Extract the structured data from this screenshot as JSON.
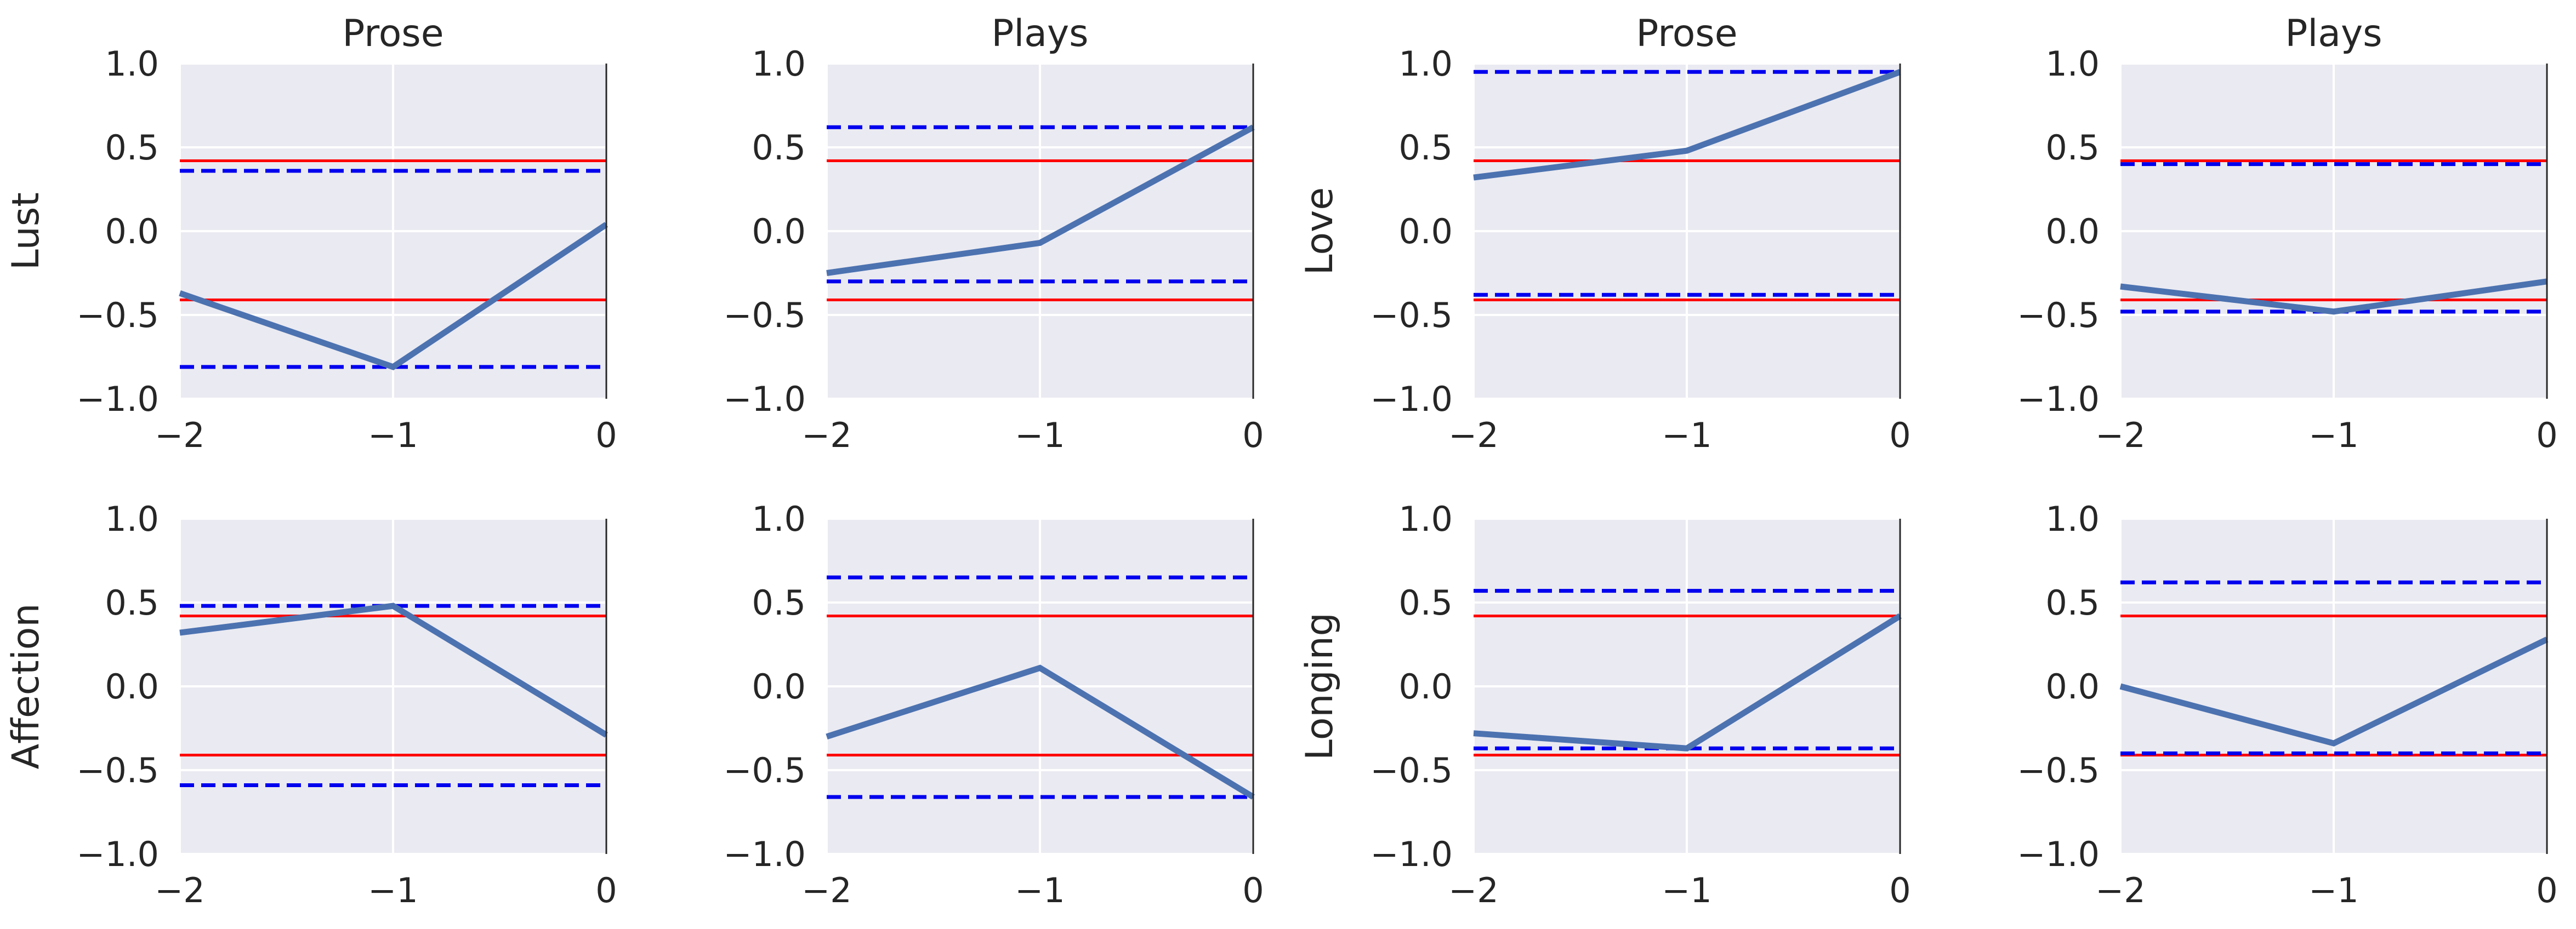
{
  "colors": {
    "panel_bg": "#eaeaf2",
    "grid": "#ffffff",
    "series": "#4c72b0",
    "threshold_solid": "#ff0000",
    "threshold_dashed": "#0000ee",
    "text": "#262626"
  },
  "chart_data": [
    {
      "type": "line",
      "title": "Prose",
      "ylabel": "Lust",
      "x": [
        -2,
        -1,
        0
      ],
      "xticks": [
        "−2",
        "−1",
        "0"
      ],
      "yticks": [
        "1.0",
        "0.5",
        "0.0",
        "−0.5",
        "−1.0"
      ],
      "xlim": [
        -2,
        0
      ],
      "ylim": [
        -1,
        1
      ],
      "values": [
        -0.37,
        -0.81,
        0.04
      ],
      "solid_lines": [
        0.42,
        -0.41
      ],
      "dashed_lines": [
        0.36,
        -0.81
      ]
    },
    {
      "type": "line",
      "title": "Plays",
      "ylabel": "",
      "x": [
        -2,
        -1,
        0
      ],
      "xticks": [
        "−2",
        "−1",
        "0"
      ],
      "yticks": [
        "1.0",
        "0.5",
        "0.0",
        "−0.5",
        "−1.0"
      ],
      "xlim": [
        -2,
        0
      ],
      "ylim": [
        -1,
        1
      ],
      "values": [
        -0.25,
        -0.07,
        0.62
      ],
      "solid_lines": [
        0.42,
        -0.41
      ],
      "dashed_lines": [
        0.62,
        -0.3
      ]
    },
    {
      "type": "line",
      "title": "Prose",
      "ylabel": "Love",
      "x": [
        -2,
        -1,
        0
      ],
      "xticks": [
        "−2",
        "−1",
        "0"
      ],
      "yticks": [
        "1.0",
        "0.5",
        "0.0",
        "−0.5",
        "−1.0"
      ],
      "xlim": [
        -2,
        0
      ],
      "ylim": [
        -1,
        1
      ],
      "values": [
        0.32,
        0.48,
        0.95
      ],
      "solid_lines": [
        0.42,
        -0.41
      ],
      "dashed_lines": [
        0.95,
        -0.38
      ]
    },
    {
      "type": "line",
      "title": "Plays",
      "ylabel": "",
      "x": [
        -2,
        -1,
        0
      ],
      "xticks": [
        "−2",
        "−1",
        "0"
      ],
      "yticks": [
        "1.0",
        "0.5",
        "0.0",
        "−0.5",
        "−1.0"
      ],
      "xlim": [
        -2,
        0
      ],
      "ylim": [
        -1,
        1
      ],
      "values": [
        -0.33,
        -0.48,
        -0.3
      ],
      "solid_lines": [
        0.42,
        -0.41
      ],
      "dashed_lines": [
        0.4,
        -0.48
      ]
    },
    {
      "type": "line",
      "title": "",
      "ylabel": "Affection",
      "x": [
        -2,
        -1,
        0
      ],
      "xticks": [
        "−2",
        "−1",
        "0"
      ],
      "yticks": [
        "1.0",
        "0.5",
        "0.0",
        "−0.5",
        "−1.0"
      ],
      "xlim": [
        -2,
        0
      ],
      "ylim": [
        -1,
        1
      ],
      "values": [
        0.32,
        0.48,
        -0.29
      ],
      "solid_lines": [
        0.42,
        -0.41
      ],
      "dashed_lines": [
        0.48,
        -0.59
      ]
    },
    {
      "type": "line",
      "title": "",
      "ylabel": "",
      "x": [
        -2,
        -1,
        0
      ],
      "xticks": [
        "−2",
        "−1",
        "0"
      ],
      "yticks": [
        "1.0",
        "0.5",
        "0.0",
        "−0.5",
        "−1.0"
      ],
      "xlim": [
        -2,
        0
      ],
      "ylim": [
        -1,
        1
      ],
      "values": [
        -0.3,
        0.11,
        -0.66
      ],
      "solid_lines": [
        0.42,
        -0.41
      ],
      "dashed_lines": [
        0.65,
        -0.66
      ]
    },
    {
      "type": "line",
      "title": "",
      "ylabel": "Longing",
      "x": [
        -2,
        -1,
        0
      ],
      "xticks": [
        "−2",
        "−1",
        "0"
      ],
      "yticks": [
        "1.0",
        "0.5",
        "0.0",
        "−0.5",
        "−1.0"
      ],
      "xlim": [
        -2,
        0
      ],
      "ylim": [
        -1,
        1
      ],
      "values": [
        -0.28,
        -0.37,
        0.42
      ],
      "solid_lines": [
        0.42,
        -0.41
      ],
      "dashed_lines": [
        0.57,
        -0.37
      ]
    },
    {
      "type": "line",
      "title": "",
      "ylabel": "",
      "x": [
        -2,
        -1,
        0
      ],
      "xticks": [
        "−2",
        "−1",
        "0"
      ],
      "yticks": [
        "1.0",
        "0.5",
        "0.0",
        "−0.5",
        "−1.0"
      ],
      "xlim": [
        -2,
        0
      ],
      "ylim": [
        -1,
        1
      ],
      "values": [
        0.0,
        -0.34,
        0.28
      ],
      "solid_lines": [
        0.42,
        -0.41
      ],
      "dashed_lines": [
        0.62,
        -0.4
      ]
    }
  ]
}
